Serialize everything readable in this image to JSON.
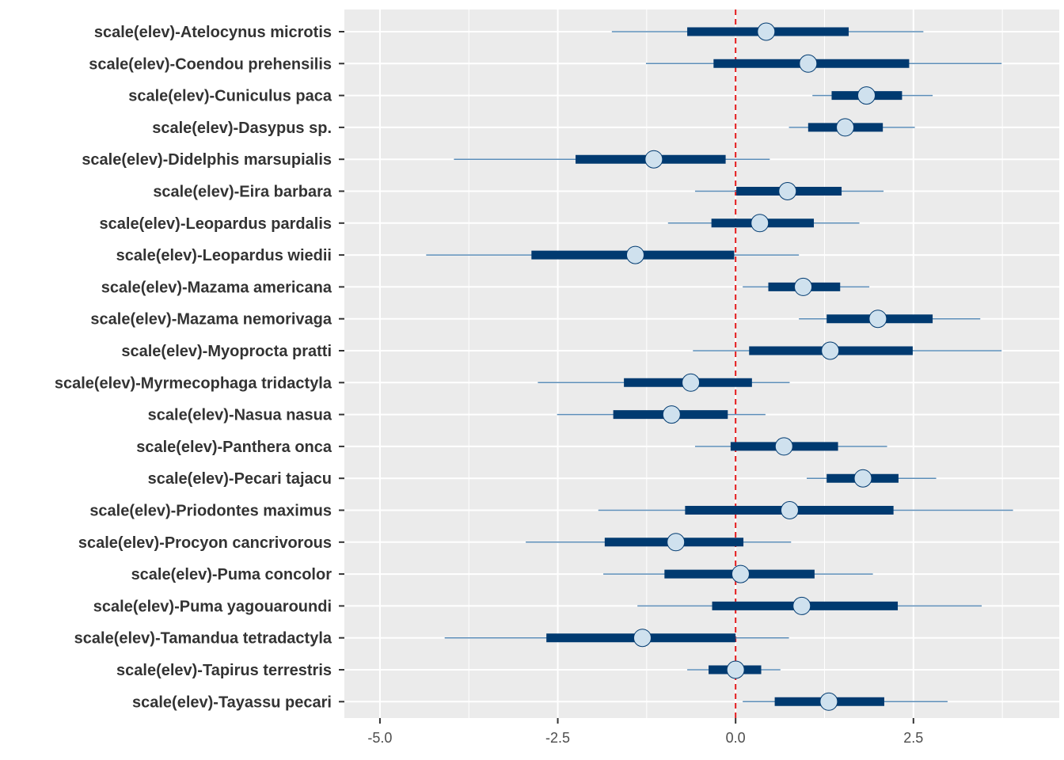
{
  "chart_data": {
    "type": "interval",
    "title": "",
    "xlabel": "",
    "ylabel": "",
    "xlim": [
      -5.5,
      4.55
    ],
    "x_ticks": [
      -5.0,
      -2.5,
      0.0,
      2.5
    ],
    "x_tick_labels": [
      "-5.0",
      "-2.5",
      "0.0",
      "2.5"
    ],
    "reference_line": {
      "x": 0,
      "style": "dashed",
      "color": "#e31a1c"
    },
    "grid": true,
    "colors": {
      "panel": "#ebebeb",
      "grid": "#ffffff",
      "outer_interval": "#5b8db8",
      "inner_interval": "#003a70",
      "point_fill": "#cfe1ee",
      "point_stroke": "#003a70"
    },
    "series": [
      {
        "label": "scale(elev)-Atelocynus microtis",
        "point": 0.43,
        "inner": [
          -0.68,
          1.59
        ],
        "outer": [
          -1.74,
          2.64
        ]
      },
      {
        "label": "scale(elev)-Coendou prehensilis",
        "point": 1.02,
        "inner": [
          -0.31,
          2.44
        ],
        "outer": [
          -1.26,
          3.74
        ]
      },
      {
        "label": "scale(elev)-Cuniculus paca",
        "point": 1.84,
        "inner": [
          1.35,
          2.34
        ],
        "outer": [
          1.08,
          2.77
        ]
      },
      {
        "label": "scale(elev)-Dasypus sp.",
        "point": 1.54,
        "inner": [
          1.02,
          2.07
        ],
        "outer": [
          0.75,
          2.52
        ]
      },
      {
        "label": "scale(elev)-Didelphis marsupialis",
        "point": -1.15,
        "inner": [
          -2.25,
          -0.14
        ],
        "outer": [
          -3.96,
          0.48
        ]
      },
      {
        "label": "scale(elev)-Eira barbara",
        "point": 0.73,
        "inner": [
          0.01,
          1.49
        ],
        "outer": [
          -0.57,
          2.08
        ]
      },
      {
        "label": "scale(elev)-Leopardus pardalis",
        "point": 0.34,
        "inner": [
          -0.34,
          1.1
        ],
        "outer": [
          -0.95,
          1.74
        ]
      },
      {
        "label": "scale(elev)-Leopardus wiedii",
        "point": -1.41,
        "inner": [
          -2.87,
          -0.02
        ],
        "outer": [
          -4.35,
          0.89
        ]
      },
      {
        "label": "scale(elev)-Mazama americana",
        "point": 0.95,
        "inner": [
          0.46,
          1.47
        ],
        "outer": [
          0.1,
          1.88
        ]
      },
      {
        "label": "scale(elev)-Mazama nemorivaga",
        "point": 2.0,
        "inner": [
          1.28,
          2.77
        ],
        "outer": [
          0.89,
          3.44
        ]
      },
      {
        "label": "scale(elev)-Myoprocta pratti",
        "point": 1.33,
        "inner": [
          0.19,
          2.49
        ],
        "outer": [
          -0.6,
          3.74
        ]
      },
      {
        "label": "scale(elev)-Myrmecophaga tridactyla",
        "point": -0.63,
        "inner": [
          -1.57,
          0.23
        ],
        "outer": [
          -2.78,
          0.76
        ]
      },
      {
        "label": "scale(elev)-Nasua nasua",
        "point": -0.9,
        "inner": [
          -1.72,
          -0.11
        ],
        "outer": [
          -2.51,
          0.42
        ]
      },
      {
        "label": "scale(elev)-Panthera onca",
        "point": 0.68,
        "inner": [
          -0.07,
          1.44
        ],
        "outer": [
          -0.57,
          2.13
        ]
      },
      {
        "label": "scale(elev)-Pecari tajacu",
        "point": 1.79,
        "inner": [
          1.28,
          2.29
        ],
        "outer": [
          1.0,
          2.82
        ]
      },
      {
        "label": "scale(elev)-Priodontes maximus",
        "point": 0.76,
        "inner": [
          -0.71,
          2.22
        ],
        "outer": [
          -1.93,
          3.9
        ]
      },
      {
        "label": "scale(elev)-Procyon cancrivorous",
        "point": -0.84,
        "inner": [
          -1.84,
          0.11
        ],
        "outer": [
          -2.95,
          0.78
        ]
      },
      {
        "label": "scale(elev)-Puma concolor",
        "point": 0.07,
        "inner": [
          -1.0,
          1.11
        ],
        "outer": [
          -1.86,
          1.93
        ]
      },
      {
        "label": "scale(elev)-Puma yagouaroundi",
        "point": 0.93,
        "inner": [
          -0.33,
          2.28
        ],
        "outer": [
          -1.38,
          3.46
        ]
      },
      {
        "label": "scale(elev)-Tamandua tetradactyla",
        "point": -1.31,
        "inner": [
          -2.66,
          0.0
        ],
        "outer": [
          -4.09,
          0.75
        ]
      },
      {
        "label": "scale(elev)-Tapirus terrestris",
        "point": 0.0,
        "inner": [
          -0.38,
          0.36
        ],
        "outer": [
          -0.68,
          0.63
        ]
      },
      {
        "label": "scale(elev)-Tayassu pecari",
        "point": 1.31,
        "inner": [
          0.55,
          2.09
        ],
        "outer": [
          0.1,
          2.98
        ]
      }
    ]
  }
}
